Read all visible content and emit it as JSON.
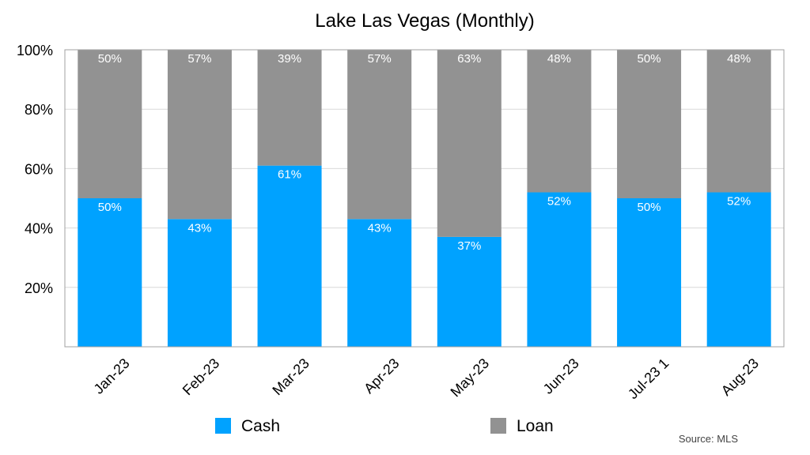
{
  "chart_data": {
    "type": "bar",
    "stacked": true,
    "title": "Lake Las Vegas (Monthly)",
    "xlabel": "",
    "ylabel": "",
    "ylim": [
      0,
      100
    ],
    "yticks": [
      20,
      40,
      60,
      80,
      100
    ],
    "ytick_labels": [
      "20%",
      "40%",
      "60%",
      "80%",
      "100%"
    ],
    "grid": "horizontal",
    "categories": [
      "Jan-23",
      "Feb-23",
      "Mar-23",
      "Apr-23",
      "May-23",
      "Jun-23",
      "Jul-23 1",
      "Aug-23"
    ],
    "series": [
      {
        "name": "Cash",
        "color": "#00a2ff",
        "values": [
          50,
          43,
          61,
          43,
          37,
          52,
          50,
          52
        ],
        "labels": [
          "50%",
          "43%",
          "61%",
          "43%",
          "37%",
          "52%",
          "50%",
          "52%"
        ]
      },
      {
        "name": "Loan",
        "color": "#929292",
        "values": [
          50,
          57,
          39,
          57,
          63,
          48,
          50,
          48
        ],
        "labels": [
          "50%",
          "57%",
          "39%",
          "57%",
          "63%",
          "48%",
          "50%",
          "48%"
        ]
      }
    ],
    "legend_position": "bottom",
    "source": "Source: MLS"
  }
}
